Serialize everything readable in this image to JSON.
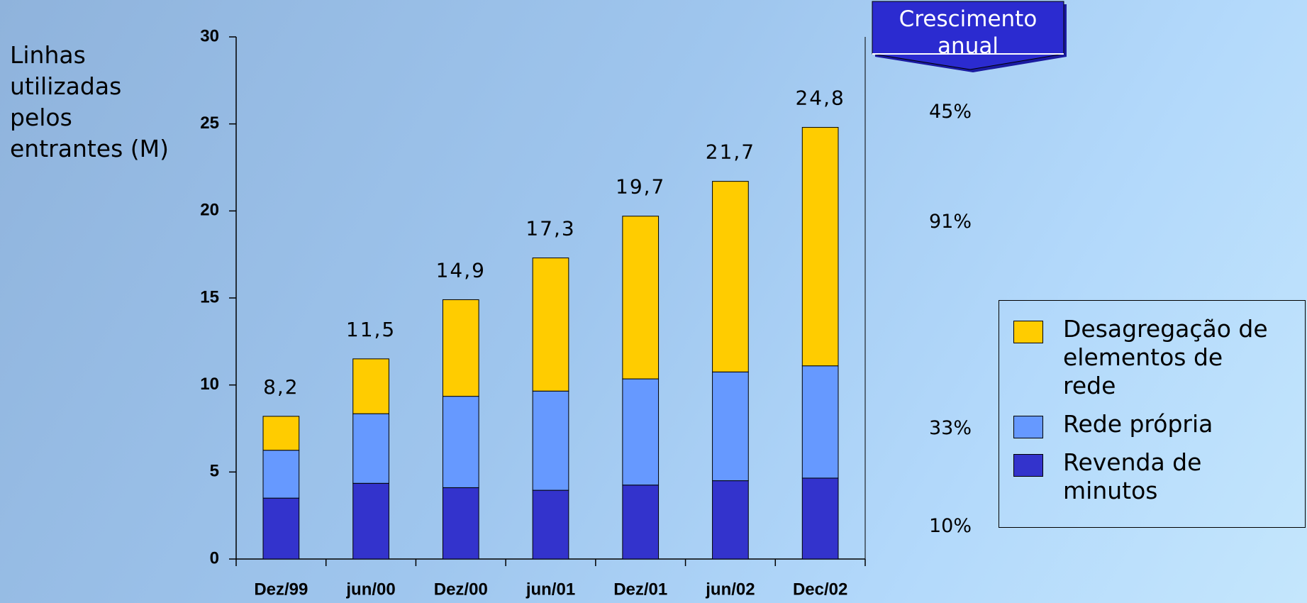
{
  "chart_data": {
    "type": "stacked_bar",
    "y_label_lines": [
      "Linhas",
      "utilizadas",
      "pelos",
      "entrantes (M)"
    ],
    "categories": [
      "Dez/99",
      "jun/00",
      "Dez/00",
      "jun/01",
      "Dez/01",
      "jun/02",
      "Dec/02"
    ],
    "series": [
      {
        "name": "Revenda de minutos",
        "color": "#3333cc",
        "values": [
          3.5,
          4.35,
          4.1,
          3.95,
          4.25,
          4.5,
          4.65
        ]
      },
      {
        "name": "Rede própria",
        "color": "#6699ff",
        "values": [
          2.75,
          4.0,
          5.25,
          5.7,
          6.1,
          6.25,
          6.45
        ]
      },
      {
        "name": "Desagregação de elementos de rede",
        "color": "#ffcc00",
        "values": [
          1.95,
          3.15,
          5.55,
          7.65,
          9.35,
          10.95,
          13.7
        ]
      }
    ],
    "totals": [
      8.2,
      11.5,
      14.9,
      17.3,
      19.7,
      21.7,
      24.8
    ],
    "total_labels": [
      "8,2",
      "11,5",
      "14,9",
      "17,3",
      "19,7",
      "21,7",
      "24,8"
    ],
    "ylim": [
      0,
      30
    ],
    "yticks": [
      0,
      5,
      10,
      15,
      20,
      25,
      30
    ],
    "growth_title_lines": [
      "Crescimento",
      "anual"
    ],
    "growth": [
      45,
      91,
      33,
      10
    ],
    "growth_labels": [
      "45%",
      "91%",
      "33%",
      "10%"
    ]
  }
}
